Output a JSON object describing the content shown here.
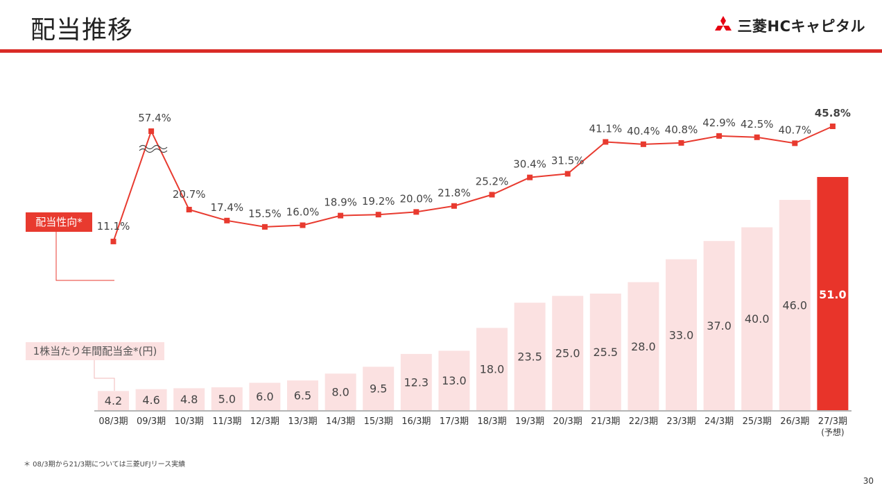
{
  "header": {
    "title": "配当推移",
    "logo_text": "三菱HCキャピタル"
  },
  "labels": {
    "payout": "配当性向*",
    "dps": "1株当たり年間配当金*(円)"
  },
  "footnote": "＊ 08/3期から21/3期については三菱UFJリース実績",
  "page_number": "30",
  "colors": {
    "accent": "#e83a2f",
    "bar": "#fbe1e1",
    "bar_highlight": "#e8342a"
  },
  "chart_data": {
    "type": "bar",
    "categories": [
      "08/3期",
      "09/3期",
      "10/3期",
      "11/3期",
      "12/3期",
      "13/3期",
      "14/3期",
      "15/3期",
      "16/3期",
      "17/3期",
      "18/3期",
      "19/3期",
      "20/3期",
      "21/3期",
      "22/3期",
      "23/3期",
      "24/3期",
      "25/3期",
      "26/3期",
      "27/3期"
    ],
    "category_notes": {
      "27/3期": "(予想)"
    },
    "series": [
      {
        "values": [
          4.2,
          4.6,
          4.8,
          5.0,
          6.0,
          6.5,
          8.0,
          9.5,
          12.3,
          13.0,
          18.0,
          23.5,
          25.0,
          25.5,
          28.0,
          33.0,
          37.0,
          40.0,
          46.0,
          51.0
        ]
      },
      {
        "type": "line",
        "unit": "%",
        "axis_break": true,
        "values": [
          11.1,
          57.4,
          20.7,
          17.4,
          15.5,
          16.0,
          18.9,
          19.2,
          20.0,
          21.8,
          25.2,
          30.4,
          31.5,
          41.1,
          40.4,
          40.8,
          42.9,
          42.5,
          40.7,
          45.8
        ]
      }
    ],
    "highlight_index": 19
  }
}
